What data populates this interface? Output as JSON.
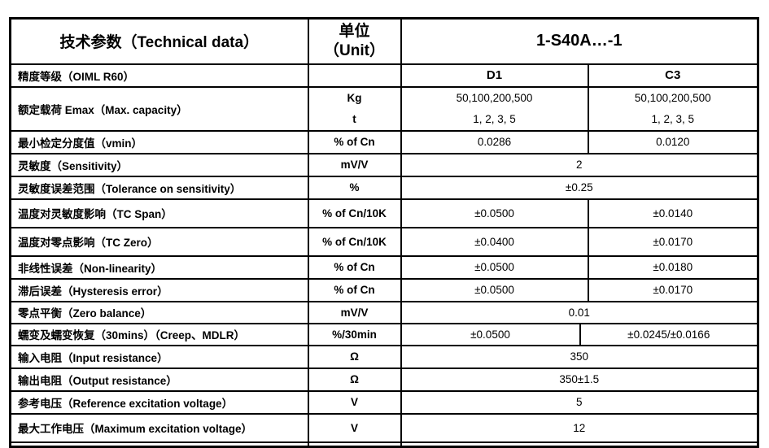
{
  "header": {
    "param_title": "技术参数（Technical data）",
    "unit_title_cn": "单位",
    "unit_title_en": "（Unit）",
    "model": "1-S40A…-1"
  },
  "grades": {
    "label": "精度等级（OIML R60）",
    "unit": "",
    "d1": "D1",
    "c3": "C3"
  },
  "capacity": {
    "label": "额定载荷 Emax（Max. capacity）",
    "unit_kg": "Kg",
    "unit_t": "t",
    "d1_kg": "50,100,200,500",
    "d1_t": "1, 2, 3, 5",
    "c3_kg": "50,100,200,500",
    "c3_t": "1, 2, 3, 5"
  },
  "rows": [
    {
      "label": "最小检定分度值（vmin）",
      "unit": "% of Cn",
      "d1": "0.0286",
      "c3": "0.0120"
    },
    {
      "label": "灵敏度（Sensitivity）",
      "unit": "mV/V",
      "all": "2"
    },
    {
      "label": "灵敏度误差范围（Tolerance on sensitivity）",
      "unit": "%",
      "all": "±0.25"
    },
    {
      "label": "温度对灵敏度影响（TC Span）",
      "unit": "% of Cn/10K",
      "d1": "±0.0500",
      "c3": "±0.0140"
    },
    {
      "label": "温度对零点影响（TC Zero）",
      "unit": "% of Cn/10K",
      "d1": "±0.0400",
      "c3": "±0.0170"
    },
    {
      "label": "非线性误差（Non-linearity）",
      "unit": "% of Cn",
      "d1": "±0.0500",
      "c3": "±0.0180"
    },
    {
      "label": "滞后误差（Hysteresis error）",
      "unit": "% of Cn",
      "d1": "±0.0500",
      "c3": "±0.0170"
    },
    {
      "label": "零点平衡（Zero balance）",
      "unit": "mV/V",
      "all": "0.01"
    },
    {
      "label": "蠕变及蠕变恢复（30mins）（Creep、MDLR）",
      "unit": "%/30min",
      "d1": "±0.0500",
      "c3": "±0.0245/±0.0166"
    },
    {
      "label": "输入电阻（Input resistance）",
      "unit": "Ω",
      "all": "350"
    },
    {
      "label": "输出电阻（Output resistance）",
      "unit": "Ω",
      "all": "350±1.5"
    },
    {
      "label": "参考电压（Reference excitation voltage）",
      "unit": "V",
      "all": "5"
    },
    {
      "label": "最大工作电压（Maximum excitation voltage）",
      "unit": "V",
      "all": "12"
    }
  ]
}
